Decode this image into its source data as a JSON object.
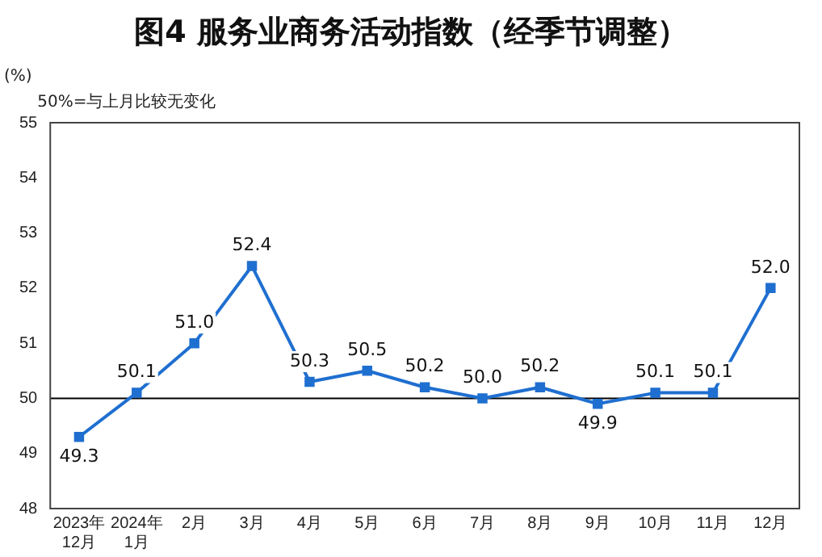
{
  "chart_data": {
    "type": "line",
    "title": "图4 服务业商务活动指数（经季节调整）",
    "ylabel": "(%)",
    "annotations": [
      "50%=与上月比较无变化"
    ],
    "categories": [
      "2023年\n12月",
      "2024年\n1月",
      "2月",
      "3月",
      "4月",
      "5月",
      "6月",
      "7月",
      "8月",
      "9月",
      "10月",
      "11月",
      "12月"
    ],
    "series": [
      {
        "color": "#1f6fd0",
        "values": [
          49.3,
          50.1,
          51.0,
          52.4,
          50.3,
          50.5,
          50.2,
          50.0,
          50.2,
          49.9,
          50.1,
          50.1,
          52.0
        ]
      }
    ],
    "value_labels": [
      "49.3",
      "50.1",
      "51.0",
      "52.4",
      "50.3",
      "50.5",
      "50.2",
      "50.0",
      "50.2",
      "49.9",
      "50.1",
      "50.1",
      "52.0"
    ],
    "ylim": [
      48,
      55
    ],
    "yticks": [
      48,
      49,
      50,
      51,
      52,
      53,
      54,
      55
    ],
    "ref_lines": [
      {
        "axis": "y",
        "value": 50,
        "label": null,
        "color": "#000000"
      }
    ],
    "grid": false,
    "legend": false,
    "marker": "square",
    "line_style": "solid"
  }
}
